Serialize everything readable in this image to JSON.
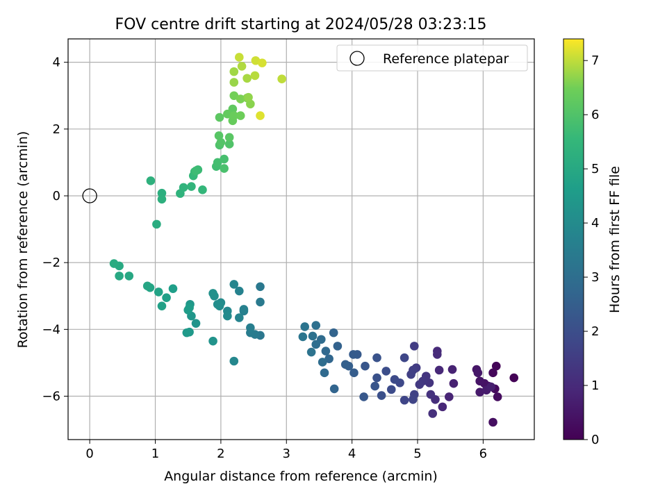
{
  "chart_data": {
    "type": "scatter",
    "title": "FOV centre drift starting at 2024/05/28 03:23:15",
    "xlabel": "Angular distance from reference (arcmin)",
    "ylabel": "Rotation from reference (arcmin)",
    "xlim": [
      -0.33,
      6.78
    ],
    "ylim": [
      -7.3,
      4.7
    ],
    "xticks": [
      0,
      1,
      2,
      3,
      4,
      5,
      6
    ],
    "yticks": [
      -6,
      -4,
      -2,
      0,
      2,
      4
    ],
    "grid": true,
    "legend": {
      "placement": "top-right",
      "entries": [
        "Reference platepar"
      ]
    },
    "reference_point": {
      "x": 0,
      "y": 0,
      "label": "Reference platepar"
    },
    "colorbar": {
      "label": "Hours from first FF file",
      "colormap": "viridis",
      "range": [
        0,
        7.4
      ],
      "ticks": [
        0,
        1,
        2,
        3,
        4,
        5,
        6,
        7
      ]
    },
    "points": [
      [
        6.47,
        -5.45,
        0.05
      ],
      [
        6.2,
        -5.1,
        0.1
      ],
      [
        6.15,
        -5.3,
        0.15
      ],
      [
        6.18,
        -5.78,
        0.2
      ],
      [
        6.22,
        -6.02,
        0.25
      ],
      [
        6.15,
        -6.78,
        0.3
      ],
      [
        6.08,
        -5.7,
        0.35
      ],
      [
        6.02,
        -5.62,
        0.4
      ],
      [
        5.95,
        -5.55,
        0.45
      ],
      [
        5.9,
        -5.2,
        0.5
      ],
      [
        5.92,
        -5.3,
        0.55
      ],
      [
        5.95,
        -5.88,
        0.6
      ],
      [
        6.05,
        -5.82,
        0.65
      ],
      [
        6.12,
        -5.72,
        0.7
      ],
      [
        5.55,
        -5.62,
        0.75
      ],
      [
        5.53,
        -5.2,
        0.8
      ],
      [
        5.48,
        -6.02,
        0.85
      ],
      [
        5.38,
        -6.32,
        0.9
      ],
      [
        5.33,
        -5.22,
        0.95
      ],
      [
        5.3,
        -4.65,
        1.0
      ],
      [
        5.3,
        -4.75,
        1.05
      ],
      [
        5.27,
        -6.1,
        1.1
      ],
      [
        5.23,
        -6.52,
        1.15
      ],
      [
        5.2,
        -5.95,
        1.2
      ],
      [
        5.18,
        -5.6,
        1.25
      ],
      [
        5.13,
        -5.4,
        1.3
      ],
      [
        5.08,
        -5.55,
        1.35
      ],
      [
        5.03,
        -5.65,
        1.4
      ],
      [
        4.98,
        -5.15,
        1.45
      ],
      [
        4.95,
        -4.5,
        1.5
      ],
      [
        4.93,
        -5.22,
        1.55
      ],
      [
        4.9,
        -5.35,
        1.6
      ],
      [
        4.95,
        -5.95,
        1.65
      ],
      [
        4.93,
        -6.1,
        1.7
      ],
      [
        4.8,
        -6.12,
        1.75
      ],
      [
        4.8,
        -4.85,
        1.8
      ],
      [
        4.73,
        -5.6,
        1.85
      ],
      [
        4.65,
        -5.5,
        1.9
      ],
      [
        4.6,
        -5.8,
        1.95
      ],
      [
        4.52,
        -5.25,
        2.0
      ],
      [
        4.45,
        -5.98,
        2.05
      ],
      [
        4.38,
        -5.45,
        2.1
      ],
      [
        4.38,
        -4.85,
        2.15
      ],
      [
        4.35,
        -5.7,
        2.2
      ],
      [
        4.2,
        -5.1,
        2.25
      ],
      [
        4.18,
        -6.02,
        2.3
      ],
      [
        4.08,
        -4.75,
        2.35
      ],
      [
        4.02,
        -4.75,
        2.4
      ],
      [
        4.03,
        -5.3,
        2.45
      ],
      [
        3.95,
        -5.1,
        2.5
      ],
      [
        3.9,
        -5.05,
        2.55
      ],
      [
        3.78,
        -4.5,
        2.6
      ],
      [
        3.72,
        -4.1,
        2.65
      ],
      [
        3.73,
        -5.78,
        2.7
      ],
      [
        3.65,
        -4.88,
        2.75
      ],
      [
        3.6,
        -4.65,
        2.8
      ],
      [
        3.58,
        -5.3,
        2.85
      ],
      [
        3.53,
        -4.3,
        2.9
      ],
      [
        3.55,
        -4.98,
        2.95
      ],
      [
        3.45,
        -4.45,
        3.0
      ],
      [
        3.45,
        -3.88,
        3.05
      ],
      [
        3.4,
        -4.2,
        3.1
      ],
      [
        3.38,
        -4.68,
        3.15
      ],
      [
        3.28,
        -3.92,
        3.2
      ],
      [
        3.25,
        -4.22,
        3.25
      ],
      [
        2.6,
        -4.18,
        3.3
      ],
      [
        2.6,
        -2.72,
        3.35
      ],
      [
        2.6,
        -3.18,
        3.4
      ],
      [
        2.52,
        -4.15,
        3.45
      ],
      [
        2.45,
        -4.1,
        3.5
      ],
      [
        2.45,
        -3.95,
        3.55
      ],
      [
        2.35,
        -3.45,
        3.6
      ],
      [
        2.35,
        -3.4,
        3.65
      ],
      [
        2.28,
        -2.85,
        3.7
      ],
      [
        2.28,
        -3.65,
        3.75
      ],
      [
        2.2,
        -2.65,
        3.8
      ],
      [
        2.2,
        -4.95,
        3.85
      ],
      [
        2.1,
        -3.45,
        3.9
      ],
      [
        2.1,
        -3.6,
        3.95
      ],
      [
        2.0,
        -3.2,
        4.0
      ],
      [
        1.98,
        -3.3,
        4.05
      ],
      [
        1.95,
        -3.25,
        4.1
      ],
      [
        1.9,
        -3.0,
        4.15
      ],
      [
        1.88,
        -2.92,
        4.2
      ],
      [
        1.88,
        -4.35,
        4.25
      ],
      [
        1.62,
        -3.82,
        4.3
      ],
      [
        1.55,
        -3.6,
        4.35
      ],
      [
        1.53,
        -3.25,
        4.4
      ],
      [
        1.52,
        -4.08,
        4.45
      ],
      [
        1.48,
        -4.1,
        4.5
      ],
      [
        1.5,
        -3.42,
        4.55
      ],
      [
        1.52,
        -3.35,
        4.6
      ],
      [
        1.27,
        -2.78,
        4.65
      ],
      [
        1.17,
        -3.05,
        4.7
      ],
      [
        1.1,
        -3.3,
        4.75
      ],
      [
        1.05,
        -2.88,
        4.8
      ],
      [
        0.92,
        -2.75,
        4.85
      ],
      [
        0.88,
        -2.7,
        4.9
      ],
      [
        0.6,
        -2.4,
        4.95
      ],
      [
        0.45,
        -2.4,
        5.0
      ],
      [
        0.45,
        -2.1,
        5.05
      ],
      [
        0.37,
        -2.03,
        5.1
      ],
      [
        1.02,
        -0.85,
        5.15
      ],
      [
        1.1,
        0.08,
        5.2
      ],
      [
        1.1,
        -0.1,
        5.25
      ],
      [
        0.93,
        0.45,
        5.3
      ],
      [
        1.38,
        0.07,
        5.35
      ],
      [
        1.43,
        0.25,
        5.4
      ],
      [
        1.55,
        0.28,
        5.45
      ],
      [
        1.72,
        0.18,
        5.5
      ],
      [
        1.58,
        0.6,
        5.55
      ],
      [
        1.6,
        0.72,
        5.6
      ],
      [
        1.65,
        0.78,
        5.65
      ],
      [
        1.62,
        0.75,
        5.7
      ],
      [
        1.93,
        0.88,
        5.75
      ],
      [
        1.95,
        1.0,
        5.8
      ],
      [
        2.05,
        1.1,
        5.85
      ],
      [
        2.05,
        0.82,
        5.9
      ],
      [
        1.98,
        1.52,
        5.95
      ],
      [
        2.13,
        1.55,
        6.0
      ],
      [
        2.0,
        1.6,
        6.05
      ],
      [
        1.97,
        1.8,
        6.1
      ],
      [
        2.13,
        1.75,
        6.15
      ],
      [
        1.98,
        2.35,
        6.2
      ],
      [
        2.18,
        2.6,
        6.25
      ],
      [
        2.1,
        2.45,
        6.3
      ],
      [
        2.18,
        2.25,
        6.35
      ],
      [
        2.2,
        2.4,
        6.4
      ],
      [
        2.3,
        2.4,
        6.45
      ],
      [
        2.2,
        3.0,
        6.5
      ],
      [
        2.3,
        2.9,
        6.55
      ],
      [
        2.4,
        2.93,
        6.6
      ],
      [
        2.45,
        2.75,
        6.65
      ],
      [
        2.42,
        2.95,
        6.7
      ],
      [
        2.2,
        3.4,
        6.75
      ],
      [
        2.2,
        3.72,
        6.8
      ],
      [
        2.4,
        3.52,
        6.85
      ],
      [
        2.32,
        3.88,
        6.9
      ],
      [
        2.52,
        3.6,
        6.95
      ],
      [
        2.93,
        3.5,
        7.0
      ],
      [
        2.28,
        4.15,
        7.05
      ],
      [
        2.53,
        4.05,
        7.1
      ],
      [
        2.63,
        3.98,
        7.15
      ],
      [
        2.6,
        2.4,
        7.2
      ]
    ]
  }
}
